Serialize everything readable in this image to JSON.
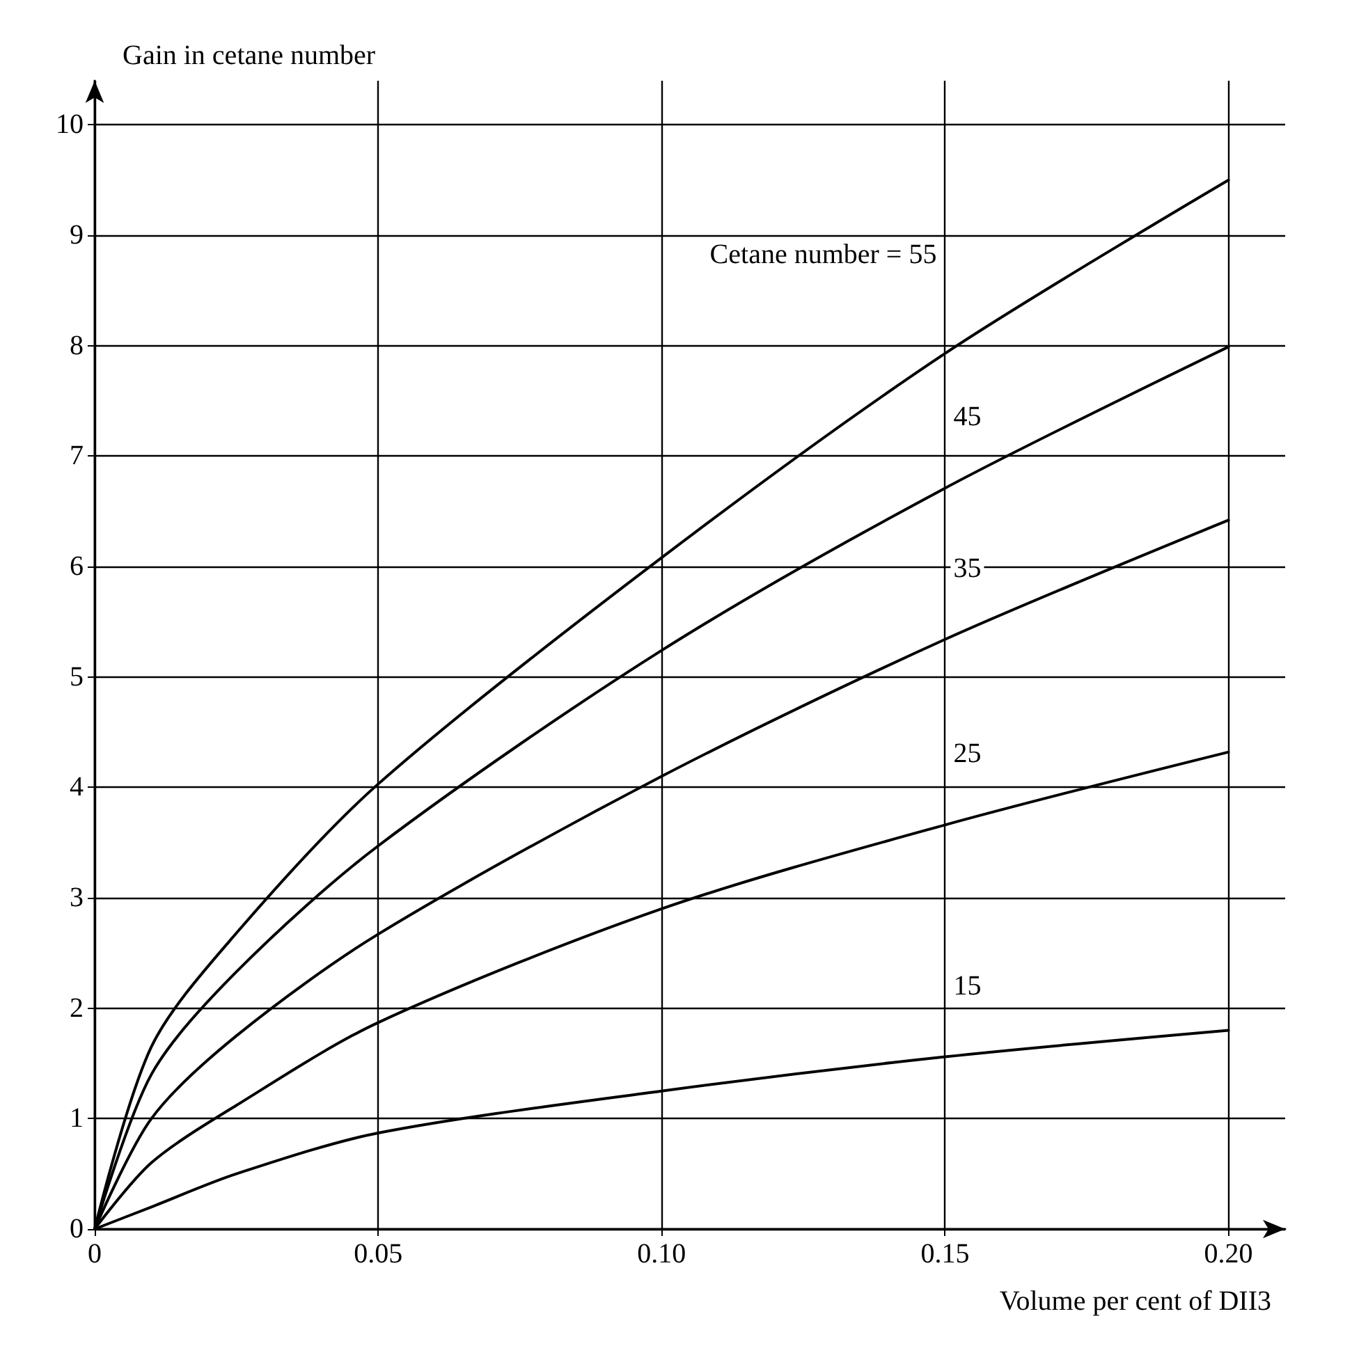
{
  "chart_data": {
    "type": "line",
    "xlabel": "Volume per cent of DII3",
    "ylabel": "Gain in cetane number",
    "x": [
      0,
      0.01,
      0.025,
      0.05,
      0.1,
      0.15,
      0.2
    ],
    "series": [
      {
        "name": "Cetane number = 55",
        "color": "#000000",
        "values": [
          0,
          1.65,
          2.68,
          4.03,
          6.08,
          7.93,
          9.5
        ]
      },
      {
        "name": "45",
        "color": "#000000",
        "values": [
          0,
          1.4,
          2.33,
          3.47,
          5.24,
          6.71,
          7.99
        ]
      },
      {
        "name": "35",
        "color": "#000000",
        "values": [
          0,
          1.0,
          1.75,
          2.67,
          4.1,
          5.34,
          6.42
        ]
      },
      {
        "name": "25",
        "color": "#000000",
        "values": [
          0,
          0.6,
          1.12,
          1.87,
          2.9,
          3.66,
          4.32
        ]
      },
      {
        "name": "15",
        "color": "#000000",
        "values": [
          0,
          0.2,
          0.5,
          0.87,
          1.25,
          1.56,
          1.8
        ]
      }
    ],
    "xlim": [
      0,
      0.21
    ],
    "ylim": [
      0,
      10.4
    ],
    "xticks": [
      0,
      {
        "value": 0.05,
        "label": "0.05"
      },
      {
        "value": 0.1,
        "label": "0.10"
      },
      {
        "value": 0.15,
        "label": "0.15"
      },
      {
        "value": 0.2,
        "label": "0.20"
      }
    ],
    "yticks": [
      0,
      1,
      2,
      3,
      4,
      5,
      6,
      7,
      8,
      9,
      10
    ],
    "grid": true,
    "legend": false,
    "marker": "none",
    "line_style": "solid"
  }
}
